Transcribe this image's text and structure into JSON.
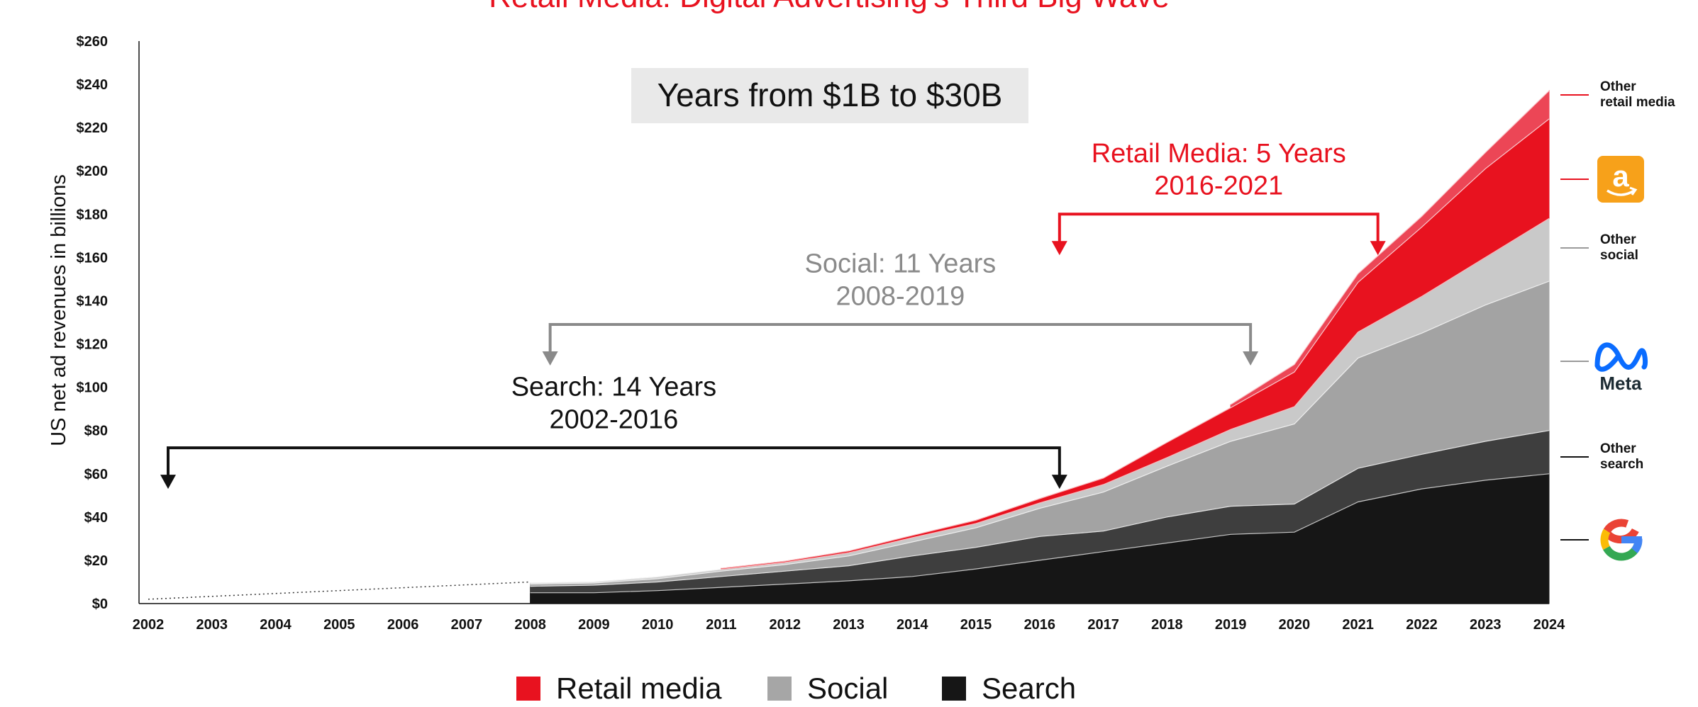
{
  "chart_data": {
    "type": "area",
    "title": "Retail Media: Digital Advertising's Third Big Wave",
    "subtitle": "Years from $1B to $30B",
    "ylabel": "US net ad revenues in billions",
    "xlabel": "",
    "ylim": [
      0,
      260
    ],
    "y_ticks": [
      "$0",
      "$20",
      "$40",
      "$60",
      "$80",
      "$100",
      "$120",
      "$140",
      "$160",
      "$180",
      "$200",
      "$220",
      "$240",
      "$260"
    ],
    "x": [
      "2002",
      "2003",
      "2004",
      "2005",
      "2006",
      "2007",
      "2008",
      "2009",
      "2010",
      "2011",
      "2012",
      "2013",
      "2014",
      "2015",
      "2016",
      "2017",
      "2018",
      "2019",
      "2020",
      "2021",
      "2022",
      "2023",
      "2024"
    ],
    "stacked": true,
    "pre_2008_total_line": {
      "x": [
        "2002",
        "2008"
      ],
      "values": [
        2,
        10
      ],
      "style": "dotted"
    },
    "series": [
      {
        "key": "google",
        "values": [
          null,
          null,
          null,
          null,
          null,
          null,
          5,
          5,
          6,
          7.5,
          9,
          10.5,
          12.5,
          16,
          20,
          24,
          28,
          32,
          33,
          47,
          53,
          57,
          60
        ]
      },
      {
        "key": "other_search",
        "values": [
          null,
          null,
          null,
          null,
          null,
          null,
          3,
          3.5,
          4,
          5,
          6,
          7,
          9.5,
          10,
          11,
          9.5,
          12,
          13,
          13,
          15.5,
          16,
          18,
          20
        ]
      },
      {
        "key": "meta",
        "values": [
          null,
          null,
          null,
          null,
          null,
          null,
          1,
          1,
          1.5,
          2.5,
          3,
          4.5,
          6.5,
          9,
          13,
          18,
          23.5,
          30,
          37,
          51,
          56,
          63,
          69
        ]
      },
      {
        "key": "other_social",
        "values": [
          null,
          null,
          null,
          null,
          null,
          null,
          0.5,
          0.5,
          0.8,
          0.8,
          1,
          1.5,
          2,
          2,
          2.5,
          3.5,
          4,
          5.5,
          8,
          12,
          17,
          22,
          29
        ]
      },
      {
        "key": "amazon",
        "values": [
          null,
          null,
          null,
          null,
          null,
          null,
          null,
          null,
          null,
          0.5,
          0.6,
          0.8,
          1,
          1.5,
          2,
          3,
          7,
          10,
          16,
          23,
          32,
          41,
          46
        ]
      },
      {
        "key": "other_retail_media",
        "values": [
          null,
          null,
          null,
          null,
          null,
          null,
          null,
          null,
          null,
          null,
          null,
          null,
          null,
          null,
          null,
          null,
          null,
          1.5,
          3.5,
          4,
          5,
          7.5,
          13
        ]
      }
    ],
    "right_labels": [
      {
        "key": "other_retail_media",
        "lines": [
          "Other",
          "retail media"
        ]
      },
      {
        "key": "amazon",
        "icon": "amazon-logo-icon"
      },
      {
        "key": "other_social",
        "lines": [
          "Other",
          "social"
        ]
      },
      {
        "key": "meta",
        "icon": "meta-logo-icon",
        "text": "Meta"
      },
      {
        "key": "other_search",
        "lines": [
          "Other",
          "search"
        ]
      },
      {
        "key": "google",
        "icon": "google-logo-icon"
      }
    ],
    "annotations": [
      {
        "key": "search",
        "lines": [
          "Search: 14 Years",
          "2002-2016"
        ],
        "from": "2002",
        "to": "2016"
      },
      {
        "key": "social",
        "lines": [
          "Social: 11 Years",
          "2008-2019"
        ],
        "from": "2008",
        "to": "2019"
      },
      {
        "key": "retail",
        "lines": [
          "Retail Media: 5 Years",
          "2016-2021"
        ],
        "from": "2016",
        "to": "2021"
      }
    ],
    "legend": [
      {
        "label": "Retail media",
        "color": "#e8121f"
      },
      {
        "label": "Social",
        "color": "#a6a6a6"
      },
      {
        "label": "Search",
        "color": "#161616"
      }
    ],
    "legend_position": "bottom-center",
    "grid": false
  },
  "colors": {
    "google": "#161616",
    "other_search": "#3e3e3e",
    "meta": "#a3a3a3",
    "other_social": "#c9c9c9",
    "amazon": "#e8121f",
    "other_retail_media": "#ec4656",
    "search_annotation": "#111111",
    "social_annotation": "#8a8a8a",
    "retail_annotation": "#e8121f",
    "amazon_brand": "#f7a11a",
    "meta_brand": "#0a6cff"
  }
}
